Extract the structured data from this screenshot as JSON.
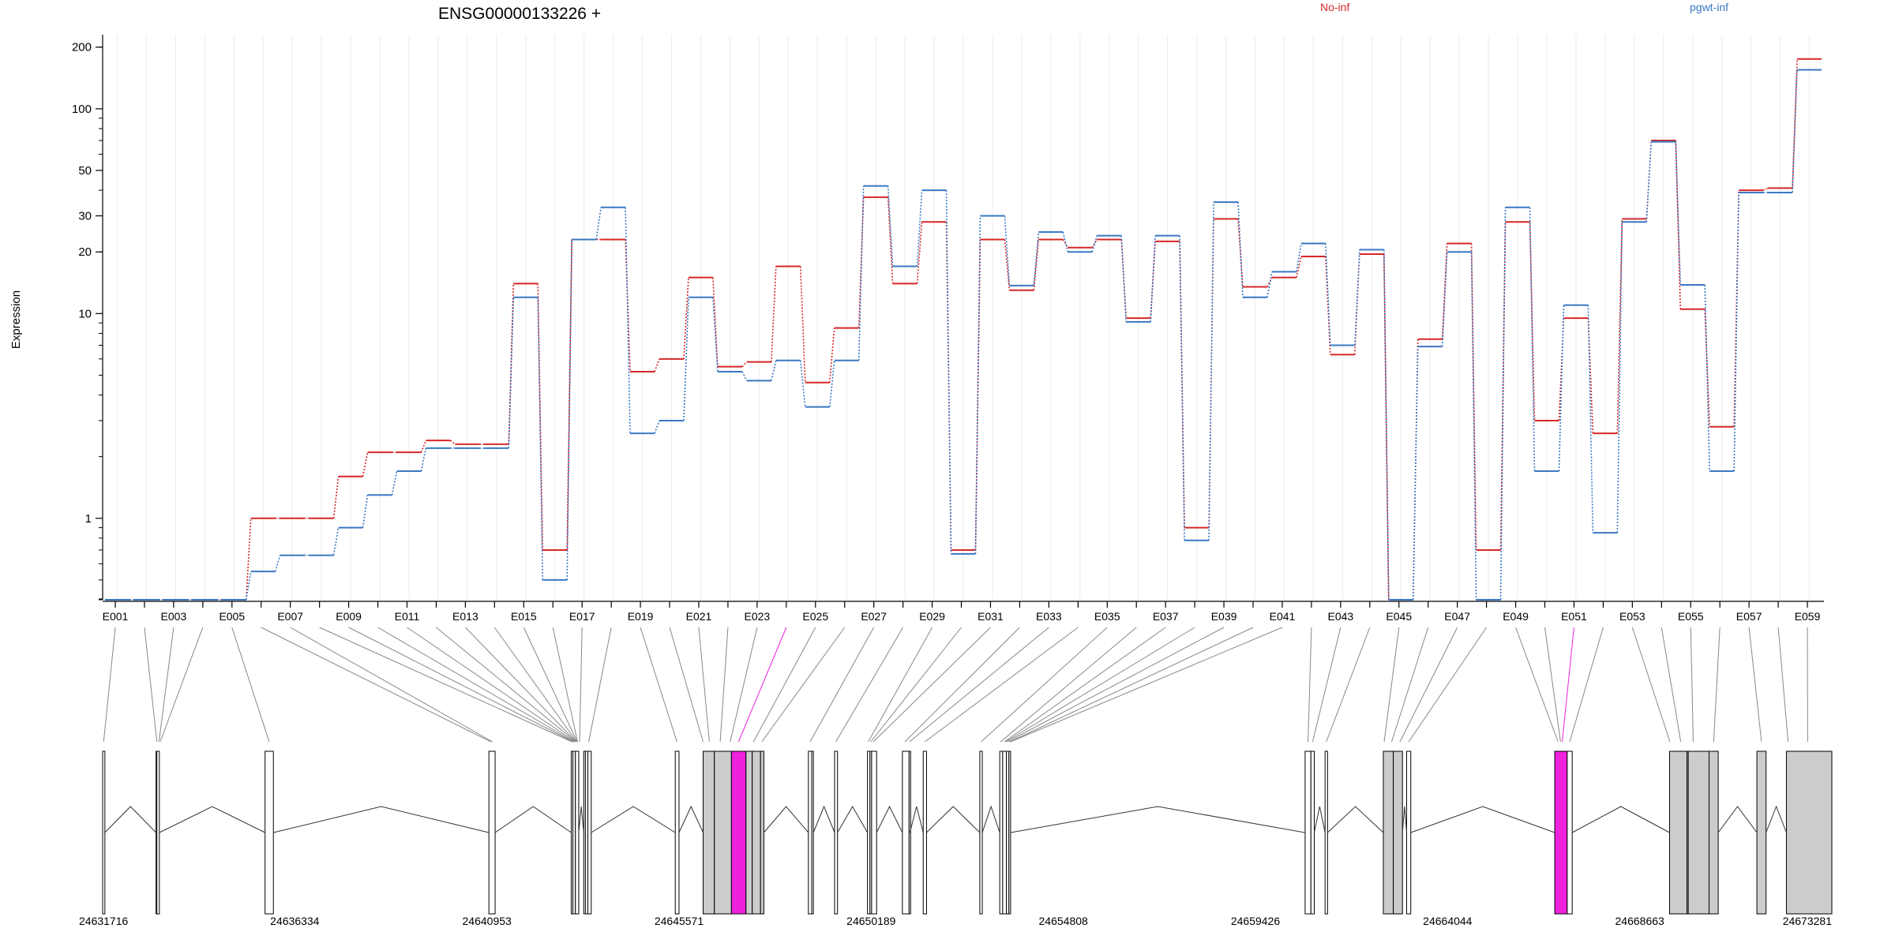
{
  "header": {
    "title": "ENSG00000133226 +",
    "legend": [
      {
        "label": "No-inf",
        "color": "#d62728"
      },
      {
        "label": "pgwt-inf",
        "color": "#3a78c3"
      }
    ]
  },
  "highlight_color": "#ee22dd",
  "chart_data": {
    "type": "line",
    "title": "ENSG00000133226 +",
    "ylabel": "Expression",
    "yscale": "log",
    "ylim": [
      0.4,
      230
    ],
    "yticks": [
      1,
      10,
      20,
      30,
      50,
      100,
      200
    ],
    "ytick_labels": [
      "1",
      "10",
      "20",
      "30",
      "50",
      "100",
      "200"
    ],
    "grid": "vertical",
    "legend_position": "top-right",
    "exons": [
      "E001",
      "E002",
      "E003",
      "E004",
      "E005",
      "E006",
      "E007",
      "E008",
      "E009",
      "E010",
      "E011",
      "E012",
      "E013",
      "E014",
      "E015",
      "E016",
      "E017",
      "E018",
      "E019",
      "E020",
      "E021",
      "E022",
      "E023",
      "E024",
      "E025",
      "E026",
      "E027",
      "E028",
      "E029",
      "E030",
      "E031",
      "E032",
      "E033",
      "E034",
      "E035",
      "E036",
      "E037",
      "E038",
      "E039",
      "E040",
      "E041",
      "E042",
      "E043",
      "E044",
      "E045",
      "E046",
      "E047",
      "E048",
      "E049",
      "E050",
      "E051",
      "E052",
      "E053",
      "E054",
      "E055",
      "E056",
      "E057",
      "E058",
      "E059"
    ],
    "exon_tick_labels": [
      "E001",
      "",
      "E003",
      "",
      "E005",
      "",
      "E007",
      "",
      "E009",
      "",
      "E011",
      "",
      "E013",
      "",
      "E015",
      "",
      "E017",
      "",
      "E019",
      "",
      "E021",
      "",
      "E023",
      "",
      "E025",
      "",
      "E027",
      "",
      "E029",
      "",
      "E031",
      "",
      "E033",
      "",
      "E035",
      "",
      "E037",
      "",
      "E039",
      "",
      "E041",
      "",
      "E043",
      "",
      "E045",
      "",
      "E047",
      "",
      "E049",
      "",
      "E051",
      "",
      "E053",
      "",
      "E055",
      "",
      "E057",
      "",
      "E059"
    ],
    "series": [
      {
        "name": "No-inf",
        "color": "#d62728",
        "values": [
          0.4,
          0.4,
          0.4,
          0.4,
          0.4,
          1.0,
          1.0,
          1.0,
          1.6,
          2.1,
          2.1,
          2.4,
          2.3,
          2.3,
          14,
          0.7,
          23,
          23,
          5.2,
          6,
          15,
          5.5,
          5.8,
          17,
          4.6,
          8.5,
          37,
          14,
          28,
          0.7,
          23,
          13,
          23,
          21,
          23,
          9.5,
          22.5,
          0.9,
          29,
          13.5,
          15,
          19,
          6.3,
          19.5,
          0.4,
          7.5,
          22,
          0.7,
          28,
          3,
          9.5,
          2.6,
          29,
          70,
          10.5,
          2.8,
          40,
          41,
          175
        ]
      },
      {
        "name": "pgwt-inf",
        "color": "#3a78c3",
        "values": [
          0.4,
          0.4,
          0.4,
          0.4,
          0.4,
          0.55,
          0.66,
          0.66,
          0.9,
          1.3,
          1.7,
          2.2,
          2.2,
          2.2,
          12,
          0.5,
          23,
          33,
          2.6,
          3,
          12,
          5.2,
          4.7,
          5.9,
          3.5,
          5.9,
          42,
          17,
          40,
          0.67,
          30,
          13.7,
          25,
          20,
          24,
          9.1,
          24,
          0.78,
          35,
          12,
          16,
          22,
          7,
          20.5,
          0.4,
          6.9,
          20,
          0.4,
          33,
          1.7,
          11,
          0.85,
          28,
          69,
          13.8,
          1.7,
          39,
          39,
          155
        ]
      }
    ],
    "highlighted_exons": [
      "E024",
      "E051"
    ]
  },
  "gene_model": {
    "range": [
      24631716,
      24673281
    ],
    "axis_labels": [
      "24631716",
      "24636334",
      "24640953",
      "24645571",
      "24650189",
      "24654808",
      "24659426",
      "24664044",
      "24668663",
      "24673281"
    ],
    "exon_segments": [
      [
        24631716,
        24631770,
        "E001"
      ],
      [
        24633000,
        24633020,
        "E002"
      ],
      [
        24633020,
        24633080,
        "E003"
      ],
      [
        24635620,
        24635820,
        "E005"
      ],
      [
        24641000,
        24641150,
        "E015"
      ],
      [
        24642980,
        24643020,
        "E015"
      ],
      [
        24643020,
        24643080,
        "E016"
      ],
      [
        24643080,
        24643160,
        "E017"
      ],
      [
        24643280,
        24643320,
        "E018"
      ],
      [
        24643320,
        24643380,
        "E019"
      ],
      [
        24643380,
        24643460,
        "E020"
      ],
      [
        24645480,
        24645570,
        "E021"
      ],
      [
        24646150,
        24646420,
        "E022"
      ],
      [
        24646420,
        24646830,
        "E023"
      ],
      [
        24646830,
        24647180,
        "E024"
      ],
      [
        24647180,
        24647330,
        "E025"
      ],
      [
        24647330,
        24647530,
        "E026"
      ],
      [
        24647530,
        24647610,
        "E027"
      ],
      [
        24648680,
        24648760,
        "E028"
      ],
      [
        24648760,
        24648800,
        "E029"
      ],
      [
        24649310,
        24649380,
        "E030"
      ],
      [
        24650100,
        24650160,
        "E031"
      ],
      [
        24650160,
        24650200,
        "E032"
      ],
      [
        24650200,
        24650320,
        "E033"
      ],
      [
        24650940,
        24651100,
        "E034"
      ],
      [
        24651100,
        24651120,
        "E035"
      ],
      [
        24651440,
        24651520,
        "E036"
      ],
      [
        24652800,
        24652860,
        "E037"
      ],
      [
        24653280,
        24653350,
        "E038"
      ],
      [
        24653350,
        24653440,
        "E039"
      ],
      [
        24653440,
        24653500,
        "E040"
      ],
      [
        24653500,
        24653540,
        "E041"
      ],
      [
        24660620,
        24660760,
        "E042"
      ],
      [
        24660760,
        24660840,
        "E043"
      ],
      [
        24661100,
        24661160,
        "E044"
      ],
      [
        24662500,
        24662740,
        "E045"
      ],
      [
        24662740,
        24662960,
        "E046"
      ],
      [
        24663060,
        24663160,
        "E047"
      ],
      [
        24666620,
        24666920,
        "E051"
      ],
      [
        24666920,
        24667040,
        "E052"
      ],
      [
        24669380,
        24669800,
        "E053"
      ],
      [
        24669800,
        24669830,
        "E054"
      ],
      [
        24669830,
        24670330,
        "E055"
      ],
      [
        24670330,
        24670550,
        "E056"
      ],
      [
        24671480,
        24671700,
        "E057"
      ],
      [
        24672190,
        24673281,
        "E059"
      ]
    ],
    "exon_anchors": {
      "E001": 24631740,
      "E002": 24633020,
      "E003": 24633070,
      "E004": 24633100,
      "E005": 24635720,
      "E006": 24641050,
      "E007": 24641090,
      "E008": 24643000,
      "E009": 24643030,
      "E010": 24643050,
      "E011": 24643070,
      "E012": 24643090,
      "E013": 24643100,
      "E014": 24643110,
      "E015": 24643120,
      "E016": 24643130,
      "E017": 24643180,
      "E018": 24643400,
      "E019": 24645520,
      "E020": 24646150,
      "E021": 24646300,
      "E022": 24646560,
      "E023": 24646800,
      "E024": 24647000,
      "E025": 24647360,
      "E026": 24647560,
      "E027": 24648720,
      "E028": 24649340,
      "E029": 24650120,
      "E030": 24650180,
      "E031": 24650240,
      "E032": 24651000,
      "E033": 24651110,
      "E034": 24651480,
      "E035": 24652830,
      "E036": 24653300,
      "E037": 24653390,
      "E038": 24653420,
      "E039": 24653460,
      "E040": 24653520,
      "E041": 24653540,
      "E042": 24660690,
      "E043": 24660800,
      "E044": 24661130,
      "E045": 24662520,
      "E046": 24662700,
      "E047": 24662900,
      "E048": 24663110,
      "E049": 24666700,
      "E050": 24666760,
      "E051": 24666800,
      "E052": 24666980,
      "E053": 24669390,
      "E054": 24669650,
      "E055": 24669950,
      "E056": 24670440,
      "E057": 24671590,
      "E058": 24672230,
      "E059": 24672700
    },
    "intron_junctions": [
      [
        24631770,
        24633000
      ],
      [
        24633080,
        24635620
      ],
      [
        24635820,
        24641000
      ],
      [
        24641150,
        24642980
      ],
      [
        24643160,
        24643280
      ],
      [
        24643460,
        24645480
      ],
      [
        24645570,
        24646150
      ],
      [
        24647610,
        24648680
      ],
      [
        24648800,
        24649310
      ],
      [
        24649380,
        24650100
      ],
      [
        24650320,
        24650940
      ],
      [
        24651120,
        24651440
      ],
      [
        24651520,
        24652800
      ],
      [
        24652860,
        24653280
      ],
      [
        24653540,
        24660620
      ],
      [
        24660840,
        24661100
      ],
      [
        24661160,
        24662500
      ],
      [
        24662960,
        24663060
      ],
      [
        24663160,
        24666620
      ],
      [
        24667040,
        24669380
      ],
      [
        24670550,
        24671480
      ],
      [
        24671700,
        24672190
      ]
    ]
  }
}
